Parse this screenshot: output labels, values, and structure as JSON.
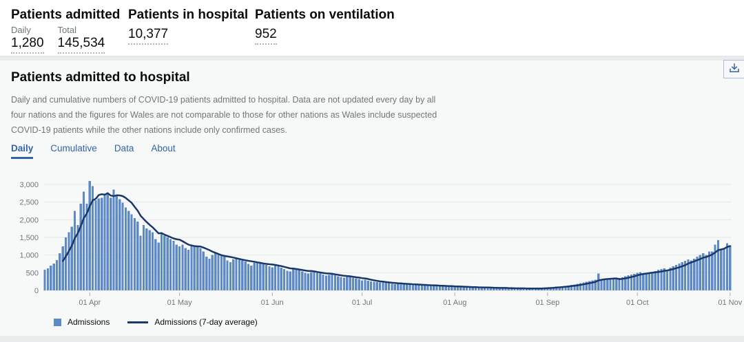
{
  "summary": {
    "admitted": {
      "title": "Patients admitted",
      "metrics": [
        {
          "label": "Daily",
          "value": "1,280"
        },
        {
          "label": "Total",
          "value": "145,534"
        }
      ]
    },
    "in_hospital": {
      "title": "Patients in hospital",
      "value": "10,377"
    },
    "ventilation": {
      "title": "Patients on ventilation",
      "value": "952"
    }
  },
  "panel": {
    "title": "Patients admitted to hospital",
    "description": "Daily and cumulative numbers of COVID-19 patients admitted to hospital. Data are not updated every day by all four nations and the figures for Wales are not comparable to those for other nations as Wales include suspected COVID-19 patients while the other nations include only confirmed cases.",
    "tabs": [
      {
        "label": "Daily",
        "active": true
      },
      {
        "label": "Cumulative",
        "active": false
      },
      {
        "label": "Data",
        "active": false
      },
      {
        "label": "About",
        "active": false
      }
    ],
    "download_icon": "download-icon"
  },
  "chart_data": {
    "type": "bar",
    "title": "Daily patients admitted to hospital",
    "start_date": "2020-03-17",
    "ylim": [
      0,
      3200
    ],
    "grid": "horizontal",
    "legend_position": "bottom-left",
    "legend": [
      "Admissions",
      "Admissions (7-day average)"
    ],
    "y_ticks": [
      {
        "value": 0,
        "label": "0"
      },
      {
        "value": 500,
        "label": "500"
      },
      {
        "value": 1000,
        "label": "1,000"
      },
      {
        "value": 1500,
        "label": "1,500"
      },
      {
        "value": 2000,
        "label": "2,000"
      },
      {
        "value": 2500,
        "label": "2,500"
      },
      {
        "value": 3000,
        "label": "3,000"
      }
    ],
    "x_ticks": [
      {
        "index": 15,
        "label": "01 Apr"
      },
      {
        "index": 45,
        "label": "01 May"
      },
      {
        "index": 76,
        "label": "01 Jun"
      },
      {
        "index": 106,
        "label": "01 Jul"
      },
      {
        "index": 137,
        "label": "01 Aug"
      },
      {
        "index": 168,
        "label": "01 Sep"
      },
      {
        "index": 198,
        "label": "01 Oct"
      },
      {
        "index": 229,
        "label": "01 Nov"
      }
    ],
    "series": [
      {
        "name": "Admissions",
        "type": "bar",
        "color": "#5d89c4",
        "values": [
          580,
          620,
          700,
          760,
          860,
          1050,
          1250,
          1500,
          1650,
          1800,
          2250,
          1850,
          2450,
          2800,
          2450,
          3100,
          2950,
          2550,
          2600,
          2620,
          2700,
          2750,
          2620,
          2850,
          2700,
          2580,
          2480,
          2350,
          2250,
          2150,
          2050,
          1950,
          1550,
          1850,
          1750,
          1700,
          1650,
          1450,
          1350,
          1600,
          1550,
          1500,
          1450,
          1400,
          1300,
          1250,
          1300,
          1200,
          1150,
          1300,
          1280,
          1250,
          1200,
          1100,
          950,
          900,
          1000,
          1050,
          1000,
          980,
          950,
          850,
          800,
          880,
          900,
          870,
          850,
          820,
          750,
          700,
          780,
          800,
          760,
          740,
          720,
          680,
          650,
          700,
          680,
          640,
          600,
          560,
          540,
          600,
          620,
          580,
          540,
          500,
          480,
          520,
          530,
          500,
          480,
          450,
          420,
          440,
          460,
          430,
          400,
          380,
          360,
          380,
          390,
          360,
          340,
          320,
          280,
          300,
          270,
          250,
          240,
          230,
          220,
          230,
          210,
          200,
          190,
          180,
          185,
          190,
          180,
          170,
          160,
          150,
          155,
          160,
          150,
          140,
          130,
          135,
          140,
          130,
          120,
          115,
          110,
          115,
          120,
          100,
          105,
          95,
          90,
          85,
          90,
          95,
          85,
          80,
          75,
          70,
          75,
          80,
          70,
          65,
          60,
          65,
          70,
          60,
          55,
          50,
          55,
          60,
          55,
          50,
          48,
          52,
          58,
          60,
          65,
          70,
          80,
          90,
          100,
          110,
          105,
          115,
          125,
          140,
          155,
          170,
          185,
          200,
          220,
          240,
          260,
          280,
          300,
          480,
          320,
          310,
          300,
          310,
          320,
          330,
          350,
          370,
          400,
          430,
          450,
          470,
          500,
          520,
          490,
          480,
          510,
          530,
          550,
          580,
          600,
          620,
          560,
          640,
          680,
          720,
          760,
          800,
          840,
          880,
          850,
          900,
          950,
          1000,
          1050,
          1000,
          1100,
          1100,
          1300,
          1420,
          1150,
          1200,
          1330,
          1280
        ]
      },
      {
        "name": "Admissions (7-day average)",
        "type": "line",
        "color": "#1a3768",
        "derived": "7-day trailing mean of Admissions"
      }
    ]
  },
  "colors": {
    "bar": "#5d89c4",
    "line": "#1a3768",
    "tab_blue": "#3263a5",
    "text_dark": "#0b0c0c",
    "text_gray": "#6f777b",
    "gridline": "#e5e7e9",
    "card_bg": "#f7f8f8"
  }
}
